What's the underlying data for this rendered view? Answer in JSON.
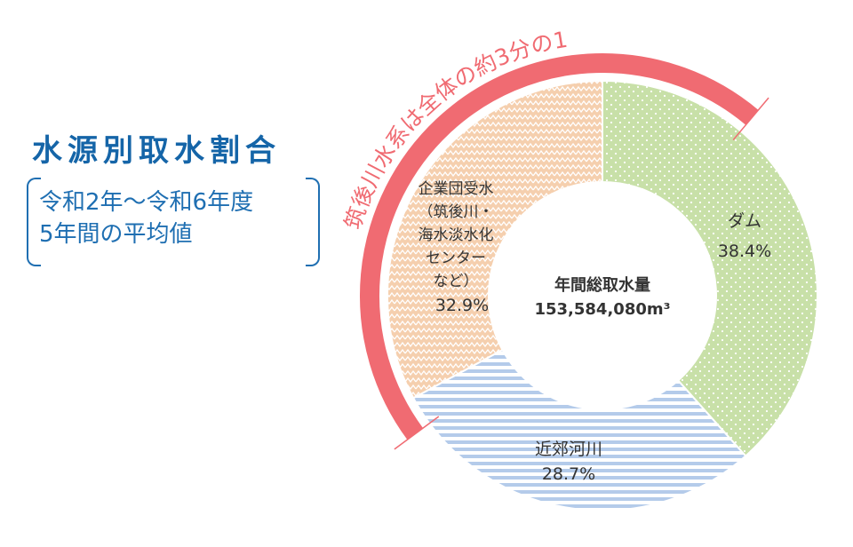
{
  "header": {
    "title": "水源別取水割合",
    "period_line1": "令和2年～令和6年度",
    "period_line2": "5年間の平均値"
  },
  "chart_data": {
    "type": "pie",
    "style": "donut",
    "center_label": "年間総取水量",
    "center_value": "153,584,080m³",
    "slices": [
      {
        "name": "ダム",
        "value": 38.4,
        "label": "38.4%",
        "color": "#c8e0a8",
        "pattern": "dots"
      },
      {
        "name": "近郊河川",
        "value": 28.7,
        "label": "28.7%",
        "color": "#c3d5ee",
        "pattern": "stripes"
      },
      {
        "name_lines": [
          "企業団受水",
          "（筑後川・",
          "海水淡水化",
          "センター",
          "など）"
        ],
        "value": 32.9,
        "label": "32.9%",
        "color": "#f5cfae",
        "pattern": "zigzag"
      }
    ],
    "annotation": {
      "text": "筑後川水系は全体の約3分の1",
      "color": "#f06b72"
    }
  }
}
